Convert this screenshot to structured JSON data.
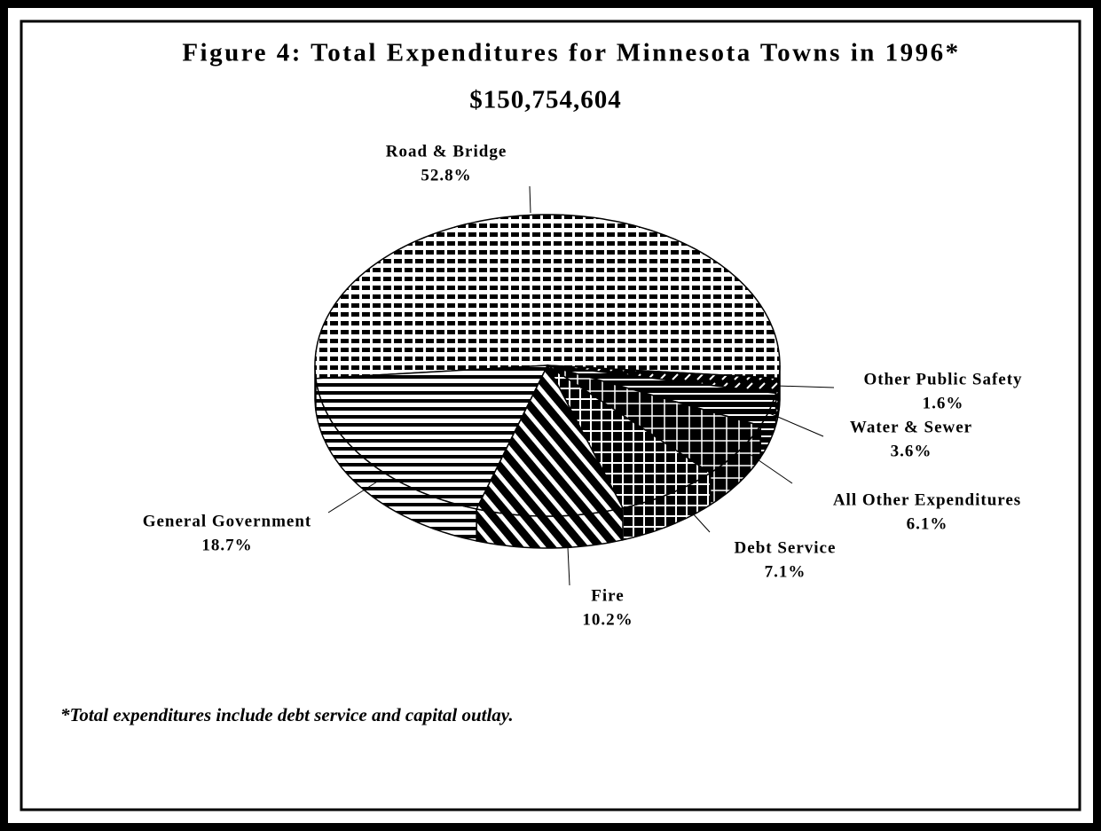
{
  "chart_data": {
    "type": "pie",
    "title": "Figure 4:  Total Expenditures for Minnesota Towns in 1996*",
    "subtitle": "$150,754,604",
    "categories": [
      "Road & Bridge",
      "Other Public Safety",
      "Water & Sewer",
      "All Other Expenditures",
      "Debt Service",
      "Fire",
      "General Government"
    ],
    "values": [
      52.8,
      1.6,
      3.6,
      6.1,
      7.1,
      10.2,
      18.7
    ],
    "value_labels": [
      "52.8%",
      "1.6%",
      "3.6%",
      "6.1%",
      "7.1%",
      "10.2%",
      "18.7%"
    ],
    "footnote": "*Total expenditures include debt service and capital outlay."
  }
}
